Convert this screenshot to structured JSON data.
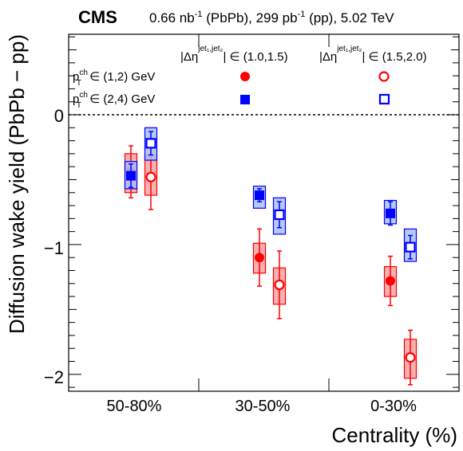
{
  "chart_data": {
    "type": "scatter",
    "experiment": "CMS",
    "header": {
      "lumi_pbpb": "0.66 nb",
      "lumi_pbpb_sup": "-1",
      "lumi_pbpb_sys": " (PbPb), 299 pb",
      "lumi_pp_sup": "-1",
      "lumi_rest": " (pp), 5.02 TeV"
    },
    "xlabel": "Centrality (%)",
    "ylabel": "Diffusion wake yield (PbPb − pp)",
    "categories": [
      "50-80%",
      "30-50%",
      "0-30%"
    ],
    "ylim": [
      -2.13,
      0.62
    ],
    "yticks": [
      {
        "value": 0,
        "label": "0"
      },
      {
        "value": -1,
        "label": "−1"
      },
      {
        "value": -2,
        "label": "−2"
      }
    ],
    "reference_line": 0,
    "legend": {
      "col1": {
        "main": "|Δη",
        "sup": "jet₁,jet₂",
        "post": "| ∈ (1.0,1.5)"
      },
      "col2": {
        "main": "|Δη",
        "sup": "jet₁,jet₂",
        "post": "| ∈ (1.5,2.0)"
      },
      "row1": {
        "p": "p",
        "sup": "ch",
        "sub": "T",
        "rest": " ∈ (1,2) GeV"
      },
      "row2": {
        "p": "p",
        "sup": "ch",
        "sub": "T",
        "rest": " ∈ (2,4) GeV"
      }
    },
    "series": [
      {
        "marker": "filled-circle",
        "color": "#ff0000",
        "values": [
          -0.44,
          -1.1,
          -1.28
        ],
        "stat": [
          0.2,
          0.22,
          0.19
        ],
        "sys_low": [
          -0.6,
          -1.22,
          -1.4
        ],
        "sys_high": [
          -0.3,
          -0.99,
          -1.17
        ]
      },
      {
        "marker": "open-circle",
        "color": "#ff0000",
        "values": [
          -0.48,
          -1.31,
          -1.87
        ],
        "stat": [
          0.25,
          0.26,
          0.21
        ],
        "sys_low": [
          -0.62,
          -1.46,
          -2.03
        ],
        "sys_high": [
          -0.31,
          -1.18,
          -1.73
        ]
      },
      {
        "marker": "filled-square",
        "color": "#0000ff",
        "values": [
          -0.47,
          -0.62,
          -0.76
        ],
        "stat": [
          0.09,
          0.05,
          0.09
        ],
        "sys_low": [
          -0.57,
          -0.72,
          -0.84
        ],
        "sys_high": [
          -0.36,
          -0.55,
          -0.66
        ]
      },
      {
        "marker": "open-square",
        "color": "#0000ff",
        "values": [
          -0.22,
          -0.77,
          -1.02
        ],
        "stat": [
          0.09,
          0.1,
          0.09
        ],
        "sys_low": [
          -0.35,
          -0.92,
          -1.13
        ],
        "sys_high": [
          -0.1,
          -0.64,
          -0.88
        ]
      }
    ],
    "colors": {
      "red_fill": "#f7a3a3",
      "blue_fill": "#a8bff3"
    }
  }
}
